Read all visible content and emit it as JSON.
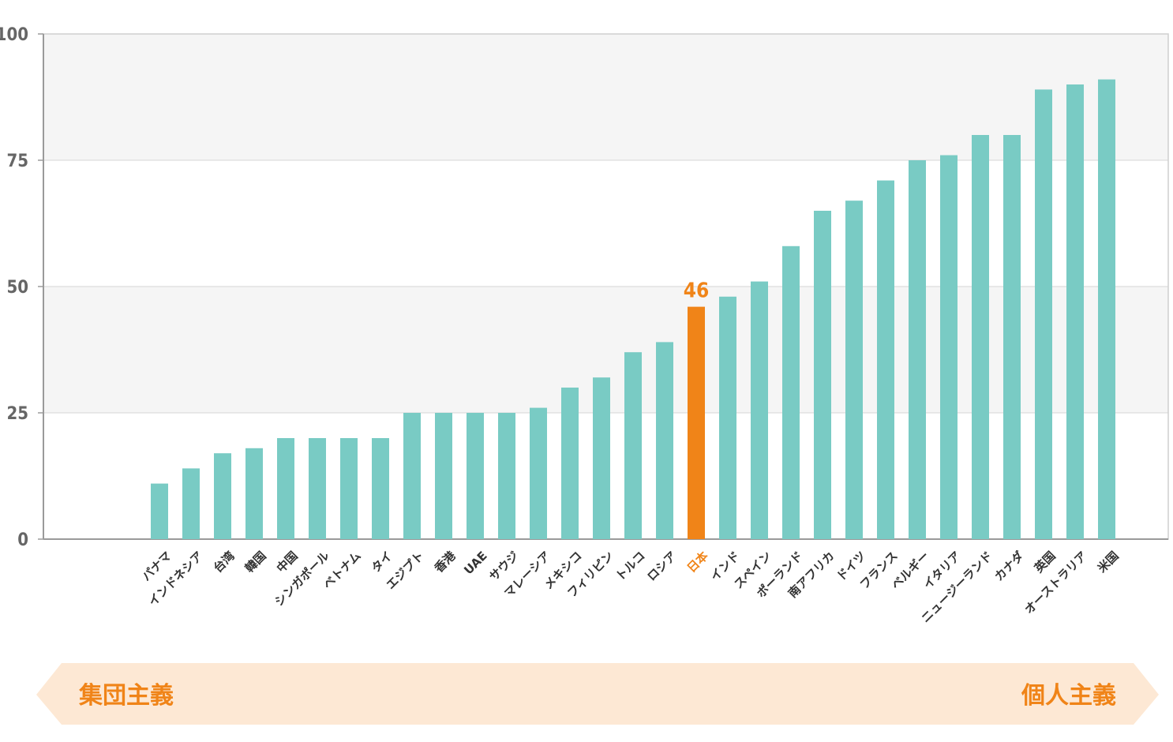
{
  "chart_data": {
    "type": "bar",
    "categories": [
      "パナマ",
      "インドネシア",
      "台湾",
      "韓国",
      "中国",
      "シンガポール",
      "ベトナム",
      "タイ",
      "エジプト",
      "香港",
      "UAE",
      "サウジ",
      "マレーシア",
      "メキシコ",
      "フィリピン",
      "トルコ",
      "ロシア",
      "日本",
      "インド",
      "スペイン",
      "ポーランド",
      "南アフリカ",
      "ドイツ",
      "フランス",
      "ベルギー",
      "イタリア",
      "ニュージーランド",
      "カナダ",
      "英国",
      "オーストラリア",
      "米国"
    ],
    "values": [
      11,
      14,
      17,
      18,
      20,
      20,
      20,
      20,
      25,
      25,
      25,
      25,
      26,
      30,
      32,
      37,
      39,
      46,
      48,
      51,
      58,
      65,
      67,
      71,
      75,
      76,
      80,
      80,
      89,
      90,
      91
    ],
    "highlight": {
      "category": "日本",
      "label": "46",
      "color": "#f08418"
    },
    "bar_color": "#79cbc4",
    "yticks": [
      "0",
      "25",
      "50",
      "75",
      "100"
    ],
    "ylim": [
      0,
      100
    ],
    "grid": true,
    "band_color": "#f5f5f5"
  },
  "scale": {
    "left_label": "集団主義",
    "right_label": "個人主義",
    "fill_color": "#fde8d4",
    "text_color": "#f08418"
  }
}
